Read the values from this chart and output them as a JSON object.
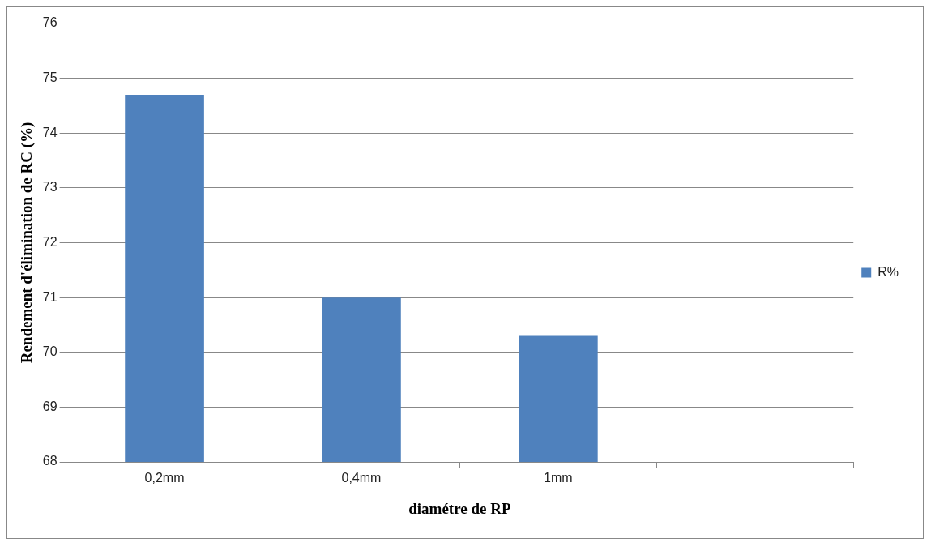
{
  "chart_data": {
    "type": "bar",
    "xlabel": "diamétre de RP",
    "ylabel": "Rendement d'élimination de RC (%)",
    "categories": [
      "0,2mm",
      "0,4mm",
      "1mm",
      null
    ],
    "series": [
      {
        "name": "R%",
        "color": "#4f81bd",
        "values": [
          74.7,
          71.0,
          70.3,
          null
        ]
      }
    ],
    "ylim": [
      68,
      76
    ],
    "yticks": [
      68,
      69,
      70,
      71,
      72,
      73,
      74,
      75,
      76
    ],
    "grid": "y",
    "legend": "right"
  }
}
